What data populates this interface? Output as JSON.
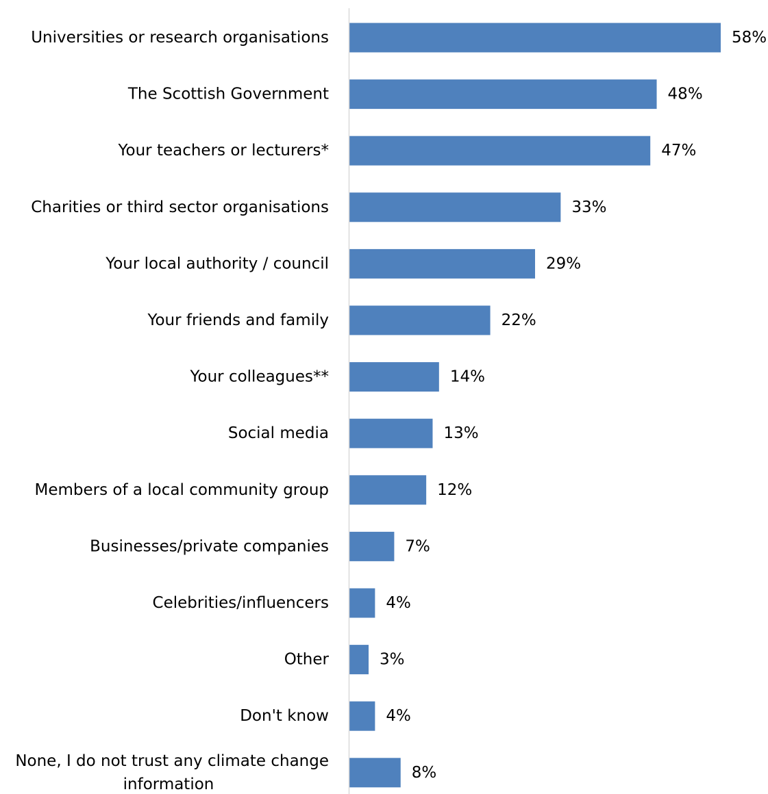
{
  "chart_data": {
    "type": "bar",
    "orientation": "horizontal",
    "title": "",
    "xlabel": "",
    "ylabel": "",
    "xlim": [
      0,
      58
    ],
    "grid": false,
    "legend": "none",
    "bar_color": "#4f81bd",
    "axis_color": "#d9d9d9",
    "value_suffix": "%",
    "categories": [
      [
        "Universities or research organisations"
      ],
      [
        "The Scottish Government"
      ],
      [
        "Your teachers or lecturers*"
      ],
      [
        "Charities or third sector organisations"
      ],
      [
        "Your local authority / council"
      ],
      [
        "Your friends and family"
      ],
      [
        "Your colleagues**"
      ],
      [
        "Social media"
      ],
      [
        "Members of a local community group"
      ],
      [
        "Businesses/private companies"
      ],
      [
        "Celebrities/influencers"
      ],
      [
        "Other"
      ],
      [
        "Don't know"
      ],
      [
        "None, I do not trust any climate change",
        "information"
      ]
    ],
    "values": [
      58,
      48,
      47,
      33,
      29,
      22,
      14,
      13,
      12,
      7,
      4,
      3,
      4,
      8
    ]
  }
}
